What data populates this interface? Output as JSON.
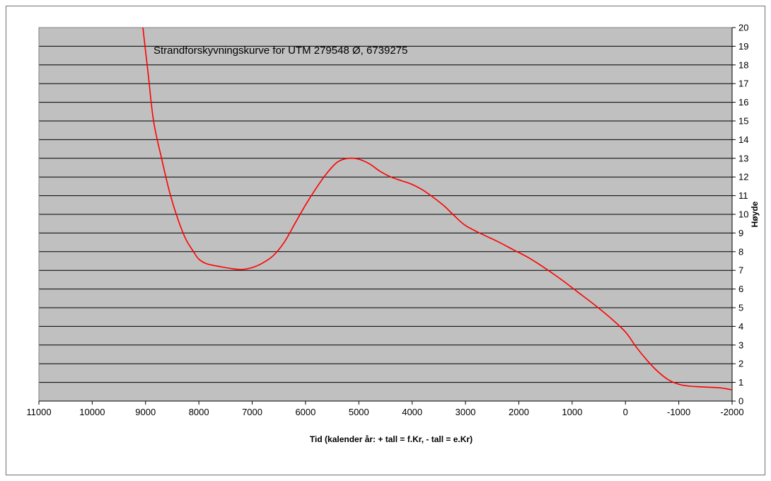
{
  "chart_data": {
    "type": "line",
    "title": "Strandforskyvningskurve for UTM  279548 Ø, 6739275",
    "xlabel": "Tid (kalender år:  + tall = f.Kr, - tall = e.Kr)",
    "ylabel": "Høyde",
    "xlim": [
      11000,
      -2000
    ],
    "ylim": [
      0,
      20
    ],
    "x_reversed": true,
    "x_ticks": [
      11000,
      10000,
      9000,
      8000,
      7000,
      6000,
      5000,
      4000,
      3000,
      2000,
      1000,
      0,
      -1000,
      -2000
    ],
    "y_ticks": [
      0,
      1,
      2,
      3,
      4,
      5,
      6,
      7,
      8,
      9,
      10,
      11,
      12,
      13,
      14,
      15,
      16,
      17,
      18,
      19,
      20
    ],
    "grid": "horizontal",
    "y_axis_position": "right",
    "colors": {
      "plot_background": "#c0c0c0",
      "line": "#ff0000",
      "grid": "#000000"
    },
    "series": [
      {
        "x": [
          9050,
          8950,
          8850,
          8700,
          8550,
          8400,
          8250,
          8100,
          8000,
          7850,
          7600,
          7400,
          7200,
          7000,
          6800,
          6600,
          6400,
          6200,
          6000,
          5800,
          5600,
          5400,
          5200,
          5000,
          4800,
          4600,
          4400,
          4200,
          4000,
          3800,
          3600,
          3400,
          3200,
          3000,
          2700,
          2400,
          2100,
          1800,
          1500,
          1200,
          900,
          600,
          300,
          0,
          -200,
          -400,
          -600,
          -800,
          -1000,
          -1200,
          -1500,
          -1800,
          -2000
        ],
        "values": [
          20.0,
          17.5,
          15.0,
          13.0,
          11.2,
          9.8,
          8.7,
          8.0,
          7.6,
          7.35,
          7.2,
          7.1,
          7.05,
          7.15,
          7.4,
          7.8,
          8.5,
          9.5,
          10.5,
          11.4,
          12.2,
          12.8,
          13.0,
          12.95,
          12.7,
          12.3,
          12.0,
          11.8,
          11.6,
          11.3,
          10.9,
          10.45,
          9.9,
          9.4,
          8.95,
          8.55,
          8.1,
          7.65,
          7.1,
          6.5,
          5.85,
          5.2,
          4.5,
          3.7,
          2.9,
          2.2,
          1.6,
          1.15,
          0.9,
          0.8,
          0.75,
          0.7,
          0.6
        ]
      }
    ]
  }
}
